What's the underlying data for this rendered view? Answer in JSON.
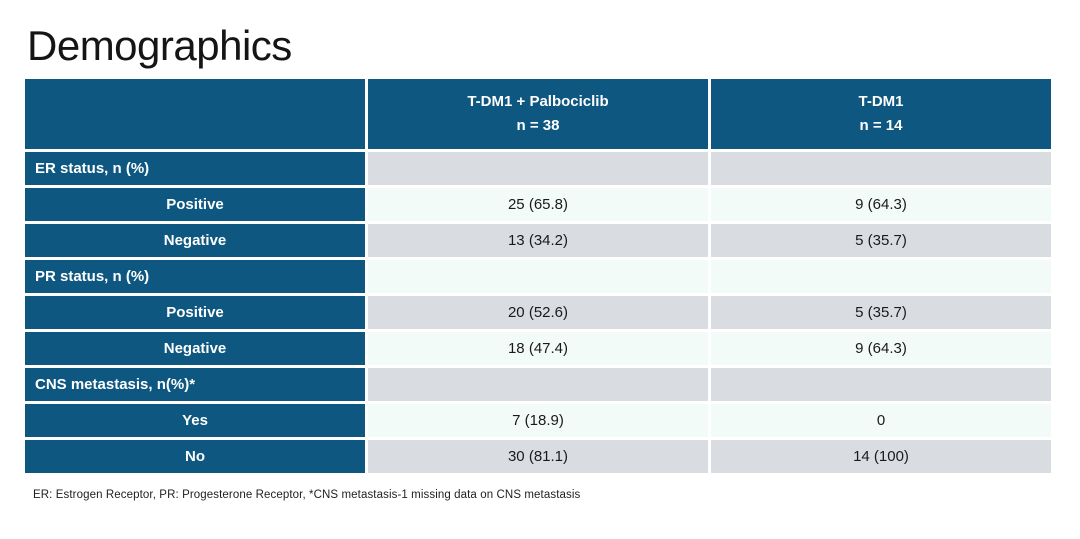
{
  "title": "Demographics",
  "table": {
    "columns": [
      {
        "label_line1": "T-DM1 + Palbociclib",
        "label_line2": "n = 38"
      },
      {
        "label_line1": "T-DM1",
        "label_line2": "n = 14"
      }
    ],
    "rows": [
      {
        "label": "ER status, n (%)",
        "type": "section",
        "values": [
          "",
          ""
        ]
      },
      {
        "label": "Positive",
        "type": "item",
        "values": [
          "25 (65.8)",
          "9 (64.3)"
        ]
      },
      {
        "label": "Negative",
        "type": "item",
        "values": [
          "13 (34.2)",
          "5 (35.7)"
        ]
      },
      {
        "label": "PR status, n (%)",
        "type": "section",
        "values": [
          "",
          ""
        ]
      },
      {
        "label": "Positive",
        "type": "item",
        "values": [
          "20 (52.6)",
          "5 (35.7)"
        ]
      },
      {
        "label": "Negative",
        "type": "item",
        "values": [
          "18 (47.4)",
          "9 (64.3)"
        ]
      },
      {
        "label": "CNS metastasis, n(%)*",
        "type": "section",
        "values": [
          "",
          ""
        ]
      },
      {
        "label": "Yes",
        "type": "item",
        "values": [
          "7 (18.9)",
          "0"
        ]
      },
      {
        "label": "No",
        "type": "item",
        "values": [
          "30 (81.1)",
          "14 (100)"
        ]
      }
    ]
  },
  "footnote": "ER: Estrogen Receptor, PR: Progesterone Receptor, *CNS metastasis-1 missing data on CNS metastasis",
  "colors": {
    "header_blue": "#0d5780",
    "row_shade_gray": "#d9dde2",
    "row_light_mint": "#f3fbf8",
    "text_ink": "#1a1a1a"
  }
}
